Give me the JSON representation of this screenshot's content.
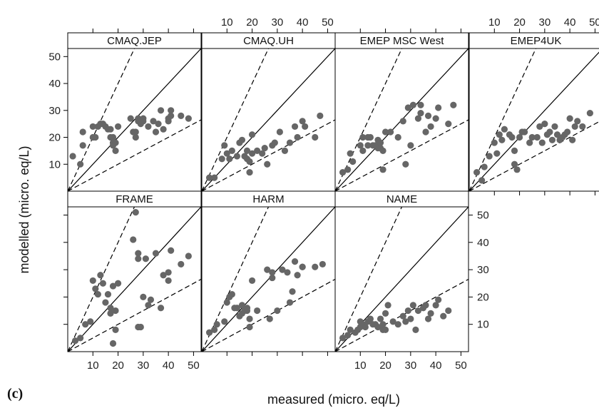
{
  "figure": {
    "panel_letter": "(c)",
    "xlabel": "measured (micro. eq/L)",
    "ylabel": "modelled (micro. eq/L)"
  },
  "chart_data": {
    "type": "scatter",
    "xlabel": "measured (micro. eq/L)",
    "ylabel": "modelled (micro. eq/L)",
    "xlim": [
      0,
      53
    ],
    "ylim": [
      0,
      53
    ],
    "x_ticks": [
      10,
      20,
      30,
      40,
      50
    ],
    "y_ticks": [
      10,
      20,
      30,
      40,
      50
    ],
    "reference_lines": [
      "1:1 (solid)",
      "2:1 (dashed)",
      "1:2 (dashed)"
    ],
    "grid": false,
    "colors": {
      "points": "#666666",
      "lines": "#000000",
      "strip_bg": "#ffffff"
    },
    "panels": [
      {
        "name": "CMAQ.JEP",
        "points": [
          [
            2,
            13
          ],
          [
            5,
            10
          ],
          [
            6,
            17
          ],
          [
            6,
            22
          ],
          [
            10,
            20
          ],
          [
            10,
            24
          ],
          [
            11,
            20
          ],
          [
            12,
            24
          ],
          [
            13,
            25
          ],
          [
            14,
            25
          ],
          [
            15,
            24
          ],
          [
            16,
            23
          ],
          [
            17,
            20
          ],
          [
            17,
            23
          ],
          [
            18,
            17
          ],
          [
            18,
            20
          ],
          [
            18,
            18
          ],
          [
            19,
            18
          ],
          [
            19,
            15
          ],
          [
            20,
            24
          ],
          [
            25,
            27
          ],
          [
            26,
            22
          ],
          [
            27,
            20
          ],
          [
            27,
            22
          ],
          [
            28,
            26
          ],
          [
            28,
            27
          ],
          [
            29,
            25
          ],
          [
            30,
            27
          ],
          [
            30,
            26
          ],
          [
            32,
            24
          ],
          [
            34,
            26
          ],
          [
            35,
            22
          ],
          [
            36,
            25
          ],
          [
            37,
            30
          ],
          [
            38,
            23
          ],
          [
            40,
            27
          ],
          [
            40,
            26
          ],
          [
            41,
            28
          ],
          [
            41,
            30
          ],
          [
            45,
            28
          ],
          [
            48,
            27
          ]
        ]
      },
      {
        "name": "CMAQ.UH",
        "points": [
          [
            3,
            5
          ],
          [
            5,
            5
          ],
          [
            8,
            12
          ],
          [
            9,
            17
          ],
          [
            10,
            14
          ],
          [
            11,
            12
          ],
          [
            12,
            15
          ],
          [
            14,
            13
          ],
          [
            15,
            18
          ],
          [
            16,
            19
          ],
          [
            17,
            13
          ],
          [
            18,
            12
          ],
          [
            18,
            15
          ],
          [
            19,
            7
          ],
          [
            19,
            11
          ],
          [
            20,
            21
          ],
          [
            20,
            14
          ],
          [
            22,
            15
          ],
          [
            24,
            14
          ],
          [
            25,
            16
          ],
          [
            26,
            10
          ],
          [
            28,
            17
          ],
          [
            29,
            18
          ],
          [
            31,
            22
          ],
          [
            33,
            15
          ],
          [
            35,
            18
          ],
          [
            37,
            24
          ],
          [
            38,
            20
          ],
          [
            40,
            26
          ],
          [
            41,
            24
          ],
          [
            45,
            20
          ],
          [
            47,
            28
          ]
        ]
      },
      {
        "name": "EMEP MSC West",
        "points": [
          [
            3,
            7
          ],
          [
            5,
            8
          ],
          [
            6,
            14
          ],
          [
            7,
            11
          ],
          [
            10,
            17
          ],
          [
            11,
            20
          ],
          [
            11,
            15
          ],
          [
            13,
            20
          ],
          [
            13,
            17
          ],
          [
            14,
            20
          ],
          [
            15,
            17
          ],
          [
            16,
            17
          ],
          [
            17,
            16
          ],
          [
            17,
            19
          ],
          [
            18,
            18
          ],
          [
            18,
            16
          ],
          [
            19,
            8
          ],
          [
            19,
            15
          ],
          [
            20,
            22
          ],
          [
            22,
            22
          ],
          [
            25,
            20
          ],
          [
            27,
            26
          ],
          [
            28,
            10
          ],
          [
            29,
            31
          ],
          [
            30,
            17
          ],
          [
            31,
            32
          ],
          [
            33,
            27
          ],
          [
            34,
            29
          ],
          [
            34,
            32
          ],
          [
            36,
            22
          ],
          [
            37,
            28
          ],
          [
            38,
            24
          ],
          [
            40,
            27
          ],
          [
            41,
            31
          ],
          [
            45,
            25
          ],
          [
            47,
            32
          ]
        ]
      },
      {
        "name": "EMEP4UK",
        "points": [
          [
            3,
            7
          ],
          [
            5,
            4
          ],
          [
            6,
            9
          ],
          [
            8,
            13
          ],
          [
            10,
            18
          ],
          [
            11,
            14
          ],
          [
            12,
            21
          ],
          [
            13,
            19
          ],
          [
            14,
            23
          ],
          [
            16,
            21
          ],
          [
            17,
            20
          ],
          [
            18,
            15
          ],
          [
            18,
            10
          ],
          [
            19,
            8
          ],
          [
            20,
            20
          ],
          [
            21,
            22
          ],
          [
            22,
            22
          ],
          [
            24,
            18
          ],
          [
            25,
            20
          ],
          [
            27,
            20
          ],
          [
            28,
            24
          ],
          [
            29,
            18
          ],
          [
            30,
            25
          ],
          [
            31,
            21
          ],
          [
            32,
            22
          ],
          [
            33,
            19
          ],
          [
            34,
            24
          ],
          [
            35,
            21
          ],
          [
            36,
            19
          ],
          [
            37,
            20
          ],
          [
            38,
            21
          ],
          [
            39,
            22
          ],
          [
            40,
            27
          ],
          [
            41,
            19
          ],
          [
            42,
            24
          ],
          [
            43,
            26
          ],
          [
            45,
            24
          ],
          [
            48,
            29
          ]
        ]
      },
      {
        "name": "FRAME",
        "points": [
          [
            3,
            4
          ],
          [
            5,
            5
          ],
          [
            7,
            10
          ],
          [
            9,
            11
          ],
          [
            10,
            26
          ],
          [
            11,
            23
          ],
          [
            12,
            21
          ],
          [
            13,
            28
          ],
          [
            14,
            25
          ],
          [
            15,
            18
          ],
          [
            16,
            21
          ],
          [
            17,
            14
          ],
          [
            17,
            16
          ],
          [
            18,
            24
          ],
          [
            18,
            3
          ],
          [
            19,
            15
          ],
          [
            19,
            8
          ],
          [
            20,
            25
          ],
          [
            26,
            41
          ],
          [
            27,
            51
          ],
          [
            28,
            36
          ],
          [
            28,
            34
          ],
          [
            28,
            9
          ],
          [
            29,
            9
          ],
          [
            30,
            20
          ],
          [
            31,
            34
          ],
          [
            32,
            17
          ],
          [
            33,
            19
          ],
          [
            35,
            36
          ],
          [
            37,
            16
          ],
          [
            38,
            28
          ],
          [
            40,
            29
          ],
          [
            40,
            26
          ],
          [
            41,
            37
          ],
          [
            45,
            32
          ],
          [
            48,
            35
          ]
        ]
      },
      {
        "name": "HARM",
        "points": [
          [
            3,
            7
          ],
          [
            5,
            8
          ],
          [
            6,
            10
          ],
          [
            9,
            11
          ],
          [
            10,
            18
          ],
          [
            11,
            20
          ],
          [
            12,
            21
          ],
          [
            13,
            16
          ],
          [
            14,
            16
          ],
          [
            15,
            13
          ],
          [
            16,
            17
          ],
          [
            16,
            14
          ],
          [
            17,
            15
          ],
          [
            18,
            16
          ],
          [
            18,
            15
          ],
          [
            19,
            9
          ],
          [
            19,
            12
          ],
          [
            20,
            26
          ],
          [
            22,
            15
          ],
          [
            26,
            30
          ],
          [
            27,
            12
          ],
          [
            28,
            29
          ],
          [
            28,
            27
          ],
          [
            30,
            15
          ],
          [
            32,
            30
          ],
          [
            34,
            29
          ],
          [
            35,
            18
          ],
          [
            36,
            22
          ],
          [
            37,
            33
          ],
          [
            38,
            28
          ],
          [
            40,
            31
          ],
          [
            40,
            31
          ],
          [
            45,
            31
          ],
          [
            48,
            32
          ]
        ]
      },
      {
        "name": "NAME",
        "points": [
          [
            3,
            5
          ],
          [
            5,
            6
          ],
          [
            6,
            8
          ],
          [
            8,
            7
          ],
          [
            9,
            8
          ],
          [
            10,
            11
          ],
          [
            10,
            9
          ],
          [
            11,
            10
          ],
          [
            12,
            9
          ],
          [
            13,
            11
          ],
          [
            14,
            12
          ],
          [
            15,
            10
          ],
          [
            16,
            10
          ],
          [
            17,
            9
          ],
          [
            18,
            12
          ],
          [
            19,
            8
          ],
          [
            19,
            10
          ],
          [
            20,
            8
          ],
          [
            20,
            14
          ],
          [
            21,
            17
          ],
          [
            23,
            11
          ],
          [
            25,
            10
          ],
          [
            27,
            13
          ],
          [
            28,
            11
          ],
          [
            29,
            15
          ],
          [
            30,
            12
          ],
          [
            31,
            17
          ],
          [
            32,
            8
          ],
          [
            33,
            15
          ],
          [
            35,
            16
          ],
          [
            36,
            17
          ],
          [
            37,
            12
          ],
          [
            38,
            14
          ],
          [
            40,
            17
          ],
          [
            41,
            19
          ],
          [
            43,
            13
          ],
          [
            45,
            15
          ]
        ]
      }
    ]
  }
}
